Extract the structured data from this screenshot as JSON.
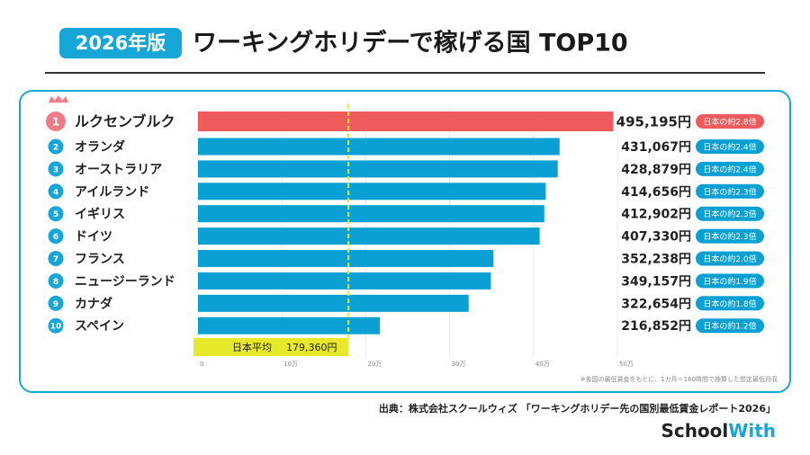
{
  "chart_data": {
    "type": "bar",
    "orientation": "horizontal",
    "edition": "2026年版",
    "title": "ワーキングホリデーで稼げる国 TOP10",
    "ranks": [
      "1",
      "2",
      "3",
      "4",
      "5",
      "6",
      "7",
      "8",
      "9",
      "10"
    ],
    "categories": [
      "ルクセンブルク",
      "オランダ",
      "オーストラリア",
      "アイルランド",
      "イギリス",
      "ドイツ",
      "フランス",
      "ニュージーランド",
      "カナダ",
      "スペイン"
    ],
    "values": [
      495195,
      431067,
      428879,
      414656,
      412902,
      407330,
      352238,
      349157,
      322654,
      216852
    ],
    "value_labels": [
      "495,195円",
      "431,067円",
      "428,879円",
      "414,656円",
      "412,902円",
      "407,330円",
      "352,238円",
      "349,157円",
      "322,654円",
      "216,852円"
    ],
    "ratio_labels": [
      "日本の約2.8倍",
      "日本の約2.4倍",
      "日本の約2.4倍",
      "日本の約2.3倍",
      "日本の約2.3倍",
      "日本の約2.3倍",
      "日本の約2.0倍",
      "日本の約1.9倍",
      "日本の約1.8倍",
      "日本の約1.2倍"
    ],
    "colors": [
      "#ef5b5c",
      "#0aa0d4",
      "#0aa0d4",
      "#0aa0d4",
      "#0aa0d4",
      "#0aa0d4",
      "#0aa0d4",
      "#0aa0d4",
      "#0aa0d4",
      "#0aa0d4"
    ],
    "reference": {
      "label": "日本平均",
      "value": 179360,
      "value_label": "179,360円",
      "color": "#e6e92a"
    },
    "xlim": [
      0,
      500000
    ],
    "xticks": [
      0,
      {
        "value": 100000,
        "label": "10万"
      },
      {
        "value": 200000,
        "label": "20万"
      },
      {
        "value": 300000,
        "label": "30万"
      },
      {
        "value": 400000,
        "label": "40万"
      },
      {
        "value": 500000,
        "label": "50万"
      }
    ],
    "grid": true,
    "note": "※各国の最低賃金をもとに、1カ月＝160時間で換算した想定最低月収",
    "source": "出典：株式会社スクールウィズ 「ワーキングホリデー先の国別最低賃金レポート2026」",
    "brand": [
      "School",
      "With"
    ]
  }
}
